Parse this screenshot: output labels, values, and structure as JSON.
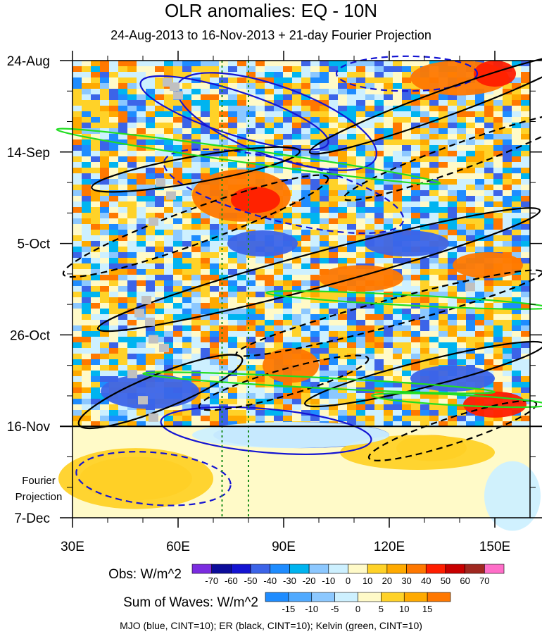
{
  "chart_data": {
    "type": "heatmap",
    "title": "OLR anomalies: EQ - 10N",
    "subtitle": "24-Aug-2013 to 16-Nov-2013 + 21-day Fourier Projection",
    "x_ticks": [
      {
        "value": 30,
        "label": "30E"
      },
      {
        "value": 60,
        "label": "60E"
      },
      {
        "value": 90,
        "label": "90E"
      },
      {
        "value": 120,
        "label": "120E"
      },
      {
        "value": 150,
        "label": "150E"
      }
    ],
    "xlim": [
      30,
      160
    ],
    "y_ticks": [
      {
        "day": 0,
        "label": "24-Aug"
      },
      {
        "day": 21,
        "label": "14-Sep"
      },
      {
        "day": 42,
        "label": "5-Oct"
      },
      {
        "day": 63,
        "label": "26-Oct"
      },
      {
        "day": 84,
        "label": "16-Nov"
      },
      {
        "day": 105,
        "label": "7-Dec"
      }
    ],
    "ylim_days": [
      0,
      105
    ],
    "projection_start_day": 84,
    "projection_label": [
      "Fourier",
      "Projection"
    ],
    "reference_longitudes": [
      72.5,
      80
    ],
    "obs_colorbar": {
      "label": "Obs: W/m^2",
      "levels": [
        -70,
        -60,
        -50,
        -40,
        -30,
        -20,
        -10,
        0,
        10,
        20,
        30,
        40,
        50,
        60,
        70
      ],
      "colors": [
        "#7b2ce0",
        "#0c0c9a",
        "#1414d2",
        "#3c64e8",
        "#1e8cff",
        "#00b4f0",
        "#8cc8ff",
        "#cdf0ff",
        "#fffac8",
        "#ffd228",
        "#ffaa00",
        "#ff7800",
        "#ff1e00",
        "#c80000",
        "#a02820",
        "#ff6ec8"
      ]
    },
    "waves_colorbar": {
      "label": "Sum of Waves: W/m^2",
      "levels": [
        -15,
        -10,
        -5,
        0,
        5,
        10,
        15
      ],
      "colors": [
        "#1e8cff",
        "#50aaff",
        "#8cc8ff",
        "#cdf0ff",
        "#fffac8",
        "#ffd228",
        "#ffaa00",
        "#ff7800"
      ]
    },
    "contour_legend": "MJO (blue, CINT=10); ER (black, CINT=10); Kelvin (green, CINT=10)",
    "features": [
      {
        "type": "fill",
        "color": "#ff7800",
        "lon": 78,
        "day": 31,
        "rlon": 14,
        "rday": 6
      },
      {
        "type": "fill",
        "color": "#ff1e00",
        "lon": 82,
        "day": 32,
        "rlon": 7,
        "rday": 3
      },
      {
        "type": "fill",
        "color": "#ff7800",
        "lon": 140,
        "day": 4,
        "rlon": 14,
        "rday": 4
      },
      {
        "type": "fill",
        "color": "#ff1e00",
        "lon": 150,
        "day": 3,
        "rlon": 6,
        "rday": 3
      },
      {
        "type": "fill",
        "color": "#ff7800",
        "lon": 112,
        "day": 50,
        "rlon": 12,
        "rday": 3
      },
      {
        "type": "fill",
        "color": "#ff7800",
        "lon": 148,
        "day": 47,
        "rlon": 10,
        "rday": 3
      },
      {
        "type": "fill",
        "color": "#ff7800",
        "lon": 92,
        "day": 70,
        "rlon": 8,
        "rday": 4
      },
      {
        "type": "fill",
        "color": "#ff1e00",
        "lon": 150,
        "day": 79,
        "rlon": 9,
        "rday": 3
      },
      {
        "type": "fill",
        "color": "#3c64e8",
        "lon": 52,
        "day": 76,
        "rlon": 14,
        "rday": 4
      },
      {
        "type": "fill",
        "color": "#3c64e8",
        "lon": 84,
        "day": 42,
        "rlon": 10,
        "rday": 3
      },
      {
        "type": "fill",
        "color": "#3c64e8",
        "lon": 125,
        "day": 42,
        "rlon": 12,
        "rday": 3
      },
      {
        "type": "fill",
        "color": "#3c64e8",
        "lon": 138,
        "day": 73,
        "rlon": 12,
        "rday": 3
      },
      {
        "type": "fill",
        "color": "#3c64e8",
        "lon": 95,
        "day": 86,
        "rlon": 25,
        "rday": 3
      },
      {
        "type": "fill",
        "color": "#ffaa00",
        "lon": 48,
        "day": 96,
        "rlon": 16,
        "rday": 5
      },
      {
        "type": "fill",
        "color": "#ffd228",
        "lon": 48,
        "day": 96,
        "rlon": 22,
        "rday": 7
      },
      {
        "type": "fill",
        "color": "#ffaa00",
        "lon": 132,
        "day": 89,
        "rlon": 10,
        "rday": 3
      },
      {
        "type": "fill",
        "color": "#ffd228",
        "lon": 128,
        "day": 90,
        "rlon": 22,
        "rday": 4
      },
      {
        "type": "fill",
        "color": "#cdf0ff",
        "lon": 92,
        "day": 86,
        "rlon": 28,
        "rday": 3
      },
      {
        "type": "fill",
        "color": "#cdf0ff",
        "lon": 155,
        "day": 100,
        "rlon": 8,
        "rday": 8
      },
      {
        "type": "contour",
        "color": "#1414d2",
        "dash": false,
        "lon": 76,
        "day": 12,
        "rlon": 28,
        "rday": 5,
        "rot": 18
      },
      {
        "type": "contour",
        "color": "#1414d2",
        "dash": false,
        "lon": 88,
        "day": 14,
        "rlon": 30,
        "rday": 8,
        "rot": 20
      },
      {
        "type": "contour",
        "color": "#1414d2",
        "dash": true,
        "lon": 90,
        "day": 30,
        "rlon": 35,
        "rday": 7,
        "rot": 14
      },
      {
        "type": "contour",
        "color": "#1414d2",
        "dash": true,
        "lon": 53,
        "day": 96,
        "rlon": 22,
        "rday": 6,
        "rot": 5
      },
      {
        "type": "contour",
        "color": "#1414d2",
        "dash": true,
        "lon": 125,
        "day": 3,
        "rlon": 20,
        "rday": 4,
        "rot": 0
      },
      {
        "type": "contour",
        "color": "#1414d2",
        "dash": false,
        "lon": 85,
        "day": 85,
        "rlon": 30,
        "rday": 5,
        "rot": 5
      },
      {
        "type": "contour",
        "color": "#000000",
        "dash": false,
        "lon": 135,
        "day": 10,
        "rlon": 40,
        "rday": 3,
        "rot": -20
      },
      {
        "type": "contour",
        "color": "#000000",
        "dash": true,
        "lon": 140,
        "day": 22,
        "rlon": 35,
        "rday": 3,
        "rot": -20
      },
      {
        "type": "contour",
        "color": "#000000",
        "dash": false,
        "lon": 100,
        "day": 48,
        "rlon": 65,
        "rday": 4,
        "rot": -15
      },
      {
        "type": "contour",
        "color": "#000000",
        "dash": true,
        "lon": 120,
        "day": 58,
        "rlon": 45,
        "rday": 3,
        "rot": -15
      },
      {
        "type": "contour",
        "color": "#000000",
        "dash": false,
        "lon": 55,
        "day": 76,
        "rlon": 25,
        "rday": 4,
        "rot": -22
      },
      {
        "type": "contour",
        "color": "#000000",
        "dash": true,
        "lon": 90,
        "day": 74,
        "rlon": 25,
        "rday": 3,
        "rot": -16
      },
      {
        "type": "contour",
        "color": "#000000",
        "dash": false,
        "lon": 130,
        "day": 72,
        "rlon": 35,
        "rday": 3,
        "rot": -14
      },
      {
        "type": "contour",
        "color": "#000000",
        "dash": true,
        "lon": 138,
        "day": 85,
        "rlon": 25,
        "rday": 3,
        "rot": -18
      },
      {
        "type": "contour",
        "color": "#000000",
        "dash": true,
        "lon": 65,
        "day": 38,
        "rlon": 40,
        "rday": 4,
        "rot": -20
      },
      {
        "type": "contour",
        "color": "#000000",
        "dash": false,
        "lon": 65,
        "day": 25,
        "rlon": 30,
        "rday": 3,
        "rot": -10
      },
      {
        "type": "contour",
        "color": "#22dd22",
        "dash": false,
        "lon": 80,
        "day": 22,
        "rlon": 55,
        "rday": 1.5,
        "rot": 8
      },
      {
        "type": "contour",
        "color": "#22dd22",
        "dash": false,
        "lon": 125,
        "day": 55,
        "rlon": 40,
        "rday": 1.2,
        "rot": 3
      },
      {
        "type": "contour",
        "color": "#22dd22",
        "dash": false,
        "lon": 100,
        "day": 74,
        "rlon": 50,
        "rday": 1.2,
        "rot": 3
      },
      {
        "type": "contour",
        "color": "#22dd22",
        "dash": false,
        "lon": 140,
        "day": 78,
        "rlon": 25,
        "rday": 1.2,
        "rot": 3
      }
    ],
    "missing_cells": [
      {
        "lon": 57,
        "day": 5
      },
      {
        "lon": 59,
        "day": 6
      },
      {
        "lon": 55,
        "day": 28
      },
      {
        "lon": 58,
        "day": 31
      },
      {
        "lon": 53,
        "day": 37
      },
      {
        "lon": 51,
        "day": 55
      },
      {
        "lon": 49,
        "day": 58
      },
      {
        "lon": 53,
        "day": 64
      },
      {
        "lon": 56,
        "day": 66
      },
      {
        "lon": 47,
        "day": 72
      },
      {
        "lon": 50,
        "day": 78
      },
      {
        "lon": 53,
        "day": 82
      },
      {
        "lon": 143,
        "day": 52
      },
      {
        "lon": 60,
        "day": 8
      },
      {
        "lon": 52,
        "day": 60
      }
    ]
  }
}
